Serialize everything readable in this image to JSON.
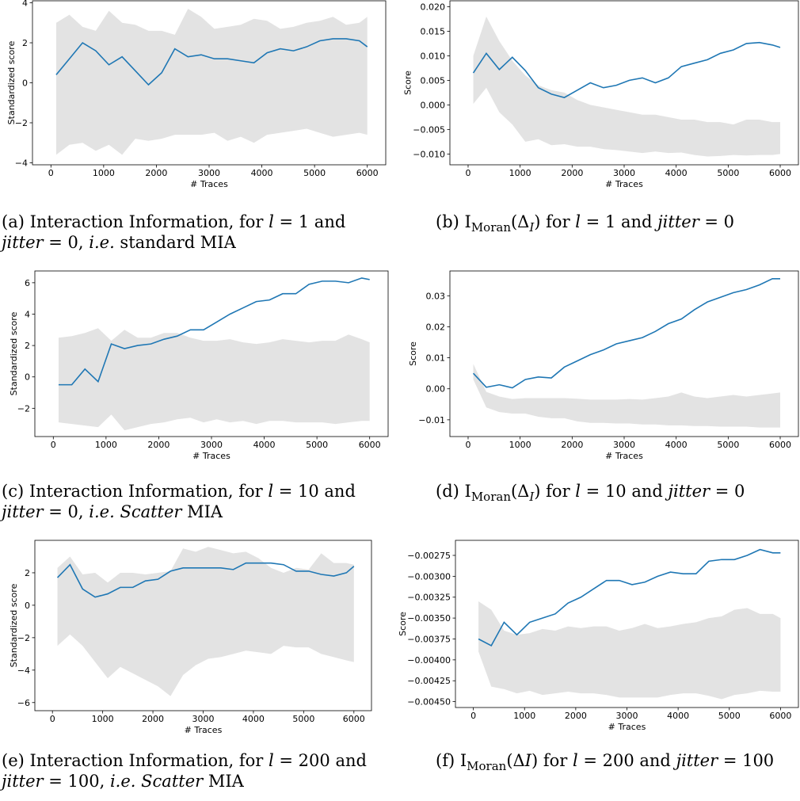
{
  "chart_data": [
    {
      "type": "line",
      "xlabel": "# Traces",
      "ylabel": "Standardized score",
      "x": [
        100,
        350,
        600,
        850,
        1100,
        1350,
        1600,
        1850,
        2100,
        2350,
        2600,
        2850,
        3100,
        3350,
        3600,
        3850,
        4100,
        4350,
        4600,
        4850,
        5100,
        5350,
        5600,
        5850,
        6000
      ],
      "series": [
        {
          "color": "#1f77b4",
          "values": [
            0.4,
            1.2,
            2.0,
            1.6,
            0.9,
            1.3,
            0.6,
            -0.1,
            0.5,
            1.7,
            1.3,
            1.4,
            1.2,
            1.2,
            1.1,
            1.0,
            1.5,
            1.7,
            1.6,
            1.8,
            2.1,
            2.2,
            2.2,
            2.1,
            1.8
          ]
        }
      ],
      "band": {
        "color": "#e3e3e3",
        "upper": [
          3.0,
          3.4,
          2.8,
          2.6,
          3.6,
          3.0,
          2.9,
          2.6,
          2.6,
          2.4,
          3.7,
          3.3,
          2.7,
          2.8,
          2.9,
          3.2,
          3.1,
          2.7,
          2.8,
          3.0,
          3.1,
          3.3,
          2.9,
          3.0,
          3.3
        ],
        "lower": [
          -3.6,
          -3.1,
          -3.0,
          -3.4,
          -3.1,
          -3.6,
          -2.8,
          -2.9,
          -2.8,
          -2.6,
          -2.6,
          -2.6,
          -2.5,
          -2.9,
          -2.7,
          -3.0,
          -2.6,
          -2.5,
          -2.4,
          -2.3,
          -2.5,
          -2.7,
          -2.6,
          -2.5,
          -2.6
        ]
      },
      "xlim": [
        -350,
        6350
      ],
      "xticks": [
        0,
        1000,
        2000,
        3000,
        4000,
        5000,
        6000
      ],
      "ylim": [
        -4.1,
        4.1
      ],
      "yticks": [
        {
          "value": -4,
          "label": "−4"
        },
        {
          "value": -2,
          "label": "−2"
        },
        0,
        2,
        4
      ],
      "caption": [
        [
          {
            "text": "(a) Interaction Information, for "
          },
          {
            "text": "l",
            "style": "italic"
          },
          {
            "text": " = 1 and"
          }
        ],
        [
          {
            "text": "jitter",
            "style": "italic"
          },
          {
            "text": " = 0, "
          },
          {
            "text": "i.e.",
            "style": "italic"
          },
          {
            "text": " standard MIA"
          }
        ]
      ]
    },
    {
      "type": "line",
      "xlabel": "# Traces",
      "ylabel": "Score",
      "x": [
        100,
        350,
        600,
        850,
        1100,
        1350,
        1600,
        1850,
        2100,
        2350,
        2600,
        2850,
        3100,
        3350,
        3600,
        3850,
        4100,
        4350,
        4600,
        4850,
        5100,
        5350,
        5600,
        5850,
        6000
      ],
      "series": [
        {
          "color": "#1f77b4",
          "values": [
            0.0065,
            0.0105,
            0.0072,
            0.0097,
            0.007,
            0.0035,
            0.0022,
            0.0015,
            0.003,
            0.0045,
            0.0035,
            0.004,
            0.005,
            0.0055,
            0.0045,
            0.0055,
            0.0078,
            0.0085,
            0.0092,
            0.0105,
            0.0112,
            0.0125,
            0.0127,
            0.0122,
            0.0117
          ]
        }
      ],
      "band": {
        "color": "#e3e3e3",
        "upper": [
          0.01,
          0.018,
          0.013,
          0.009,
          0.006,
          0.004,
          0.003,
          0.0025,
          0.001,
          0.0,
          -0.0005,
          -0.001,
          -0.0015,
          -0.002,
          -0.002,
          -0.0025,
          -0.003,
          -0.003,
          -0.0035,
          -0.0035,
          -0.004,
          -0.003,
          -0.003,
          -0.0035,
          -0.0035
        ],
        "lower": [
          0.0002,
          0.0035,
          -0.0015,
          -0.004,
          -0.0075,
          -0.007,
          -0.0082,
          -0.008,
          -0.0085,
          -0.0085,
          -0.009,
          -0.0092,
          -0.0095,
          -0.0098,
          -0.0095,
          -0.0098,
          -0.0097,
          -0.0102,
          -0.0105,
          -0.0104,
          -0.0102,
          -0.0103,
          -0.0102,
          -0.0102,
          -0.01
        ]
      },
      "xlim": [
        -350,
        6350
      ],
      "xticks": [
        0,
        1000,
        2000,
        3000,
        4000,
        5000,
        6000
      ],
      "ylim": [
        -0.0122,
        0.0212
      ],
      "yticks": [
        {
          "value": -0.01,
          "label": "−0.010"
        },
        {
          "value": -0.005,
          "label": "−0.005"
        },
        {
          "value": 0,
          "label": "0.000"
        },
        {
          "value": 0.005,
          "label": "0.005"
        },
        {
          "value": 0.01,
          "label": "0.010"
        },
        {
          "value": 0.015,
          "label": "0.015"
        },
        {
          "value": 0.02,
          "label": "0.020"
        }
      ],
      "caption": [
        [
          {
            "text": "(b) I"
          },
          {
            "text": "Moran",
            "style": "sub"
          },
          {
            "text": "(Δ"
          },
          {
            "text": "I",
            "style": "sub-italic"
          },
          {
            "text": ") for "
          },
          {
            "text": "l",
            "style": "italic"
          },
          {
            "text": " = 1 and "
          },
          {
            "text": "jitter",
            "style": "italic"
          },
          {
            "text": " = 0"
          }
        ]
      ]
    },
    {
      "type": "line",
      "xlabel": "# Traces",
      "ylabel": "Standardized score",
      "x": [
        100,
        350,
        600,
        850,
        1100,
        1350,
        1600,
        1850,
        2100,
        2350,
        2600,
        2850,
        3100,
        3350,
        3600,
        3850,
        4100,
        4350,
        4600,
        4850,
        5100,
        5350,
        5600,
        5850,
        6000
      ],
      "series": [
        {
          "color": "#1f77b4",
          "values": [
            -0.5,
            -0.5,
            0.5,
            -0.3,
            2.1,
            1.8,
            2.0,
            2.1,
            2.4,
            2.6,
            3.0,
            3.0,
            3.5,
            4.0,
            4.4,
            4.8,
            4.9,
            5.3,
            5.3,
            5.9,
            6.1,
            6.1,
            6.0,
            6.3,
            6.2
          ]
        }
      ],
      "band": {
        "color": "#e3e3e3",
        "upper": [
          2.5,
          2.6,
          2.8,
          3.1,
          2.3,
          3.0,
          2.5,
          2.5,
          2.8,
          2.8,
          2.5,
          2.3,
          2.3,
          2.4,
          2.2,
          2.1,
          2.2,
          2.4,
          2.3,
          2.2,
          2.3,
          2.3,
          2.7,
          2.4,
          2.2
        ],
        "lower": [
          -2.9,
          -3.0,
          -3.1,
          -3.2,
          -2.4,
          -3.4,
          -3.2,
          -3.0,
          -2.9,
          -2.7,
          -2.6,
          -2.9,
          -2.7,
          -2.9,
          -2.8,
          -3.0,
          -2.8,
          -2.8,
          -2.9,
          -2.9,
          -2.9,
          -3.0,
          -2.9,
          -2.8,
          -2.8
        ]
      },
      "xlim": [
        -350,
        6350
      ],
      "xticks": [
        0,
        1000,
        2000,
        3000,
        4000,
        5000,
        6000
      ],
      "ylim": [
        -3.8,
        6.75
      ],
      "yticks": [
        {
          "value": -2,
          "label": "−2"
        },
        0,
        2,
        4,
        6
      ],
      "caption": [
        [
          {
            "text": "(c) Interaction Information, for "
          },
          {
            "text": "l",
            "style": "italic"
          },
          {
            "text": " = 10 and"
          }
        ],
        [
          {
            "text": "jitter",
            "style": "italic"
          },
          {
            "text": " = 0, "
          },
          {
            "text": "i.e.",
            "style": "italic"
          },
          {
            "text": " "
          },
          {
            "text": "Scatter",
            "style": "italic"
          },
          {
            "text": " MIA"
          }
        ]
      ]
    },
    {
      "type": "line",
      "xlabel": "# Traces",
      "ylabel": "Score",
      "x": [
        100,
        350,
        600,
        850,
        1100,
        1350,
        1600,
        1850,
        2100,
        2350,
        2600,
        2850,
        3100,
        3350,
        3600,
        3850,
        4100,
        4350,
        4600,
        4850,
        5100,
        5350,
        5600,
        5850,
        6000
      ],
      "series": [
        {
          "color": "#1f77b4",
          "values": [
            0.005,
            0.0005,
            0.0013,
            0.0003,
            0.003,
            0.0038,
            0.0035,
            0.007,
            0.009,
            0.011,
            0.0125,
            0.0145,
            0.0155,
            0.0165,
            0.0185,
            0.021,
            0.0225,
            0.0255,
            0.028,
            0.0295,
            0.031,
            0.032,
            0.0335,
            0.0355,
            0.0355
          ]
        }
      ],
      "band": {
        "color": "#e3e3e3",
        "upper": [
          0.008,
          -0.001,
          -0.0025,
          -0.0033,
          -0.003,
          -0.003,
          -0.003,
          -0.003,
          -0.0032,
          -0.0035,
          -0.0035,
          -0.0035,
          -0.0033,
          -0.0035,
          -0.003,
          -0.0025,
          -0.0012,
          -0.0025,
          -0.003,
          -0.0025,
          -0.002,
          -0.0025,
          -0.002,
          -0.0015,
          -0.0012
        ],
        "lower": [
          0.003,
          -0.006,
          -0.0075,
          -0.008,
          -0.008,
          -0.009,
          -0.0095,
          -0.0095,
          -0.0105,
          -0.011,
          -0.011,
          -0.0112,
          -0.0112,
          -0.0115,
          -0.0115,
          -0.0118,
          -0.0118,
          -0.012,
          -0.012,
          -0.0122,
          -0.0122,
          -0.0122,
          -0.0125,
          -0.0125,
          -0.0125
        ]
      },
      "xlim": [
        -350,
        6350
      ],
      "xticks": [
        0,
        1000,
        2000,
        3000,
        4000,
        5000,
        6000
      ],
      "ylim": [
        -0.0154,
        0.038
      ],
      "yticks": [
        {
          "value": -0.01,
          "label": "−0.01"
        },
        {
          "value": 0,
          "label": "0.00"
        },
        {
          "value": 0.01,
          "label": "0.01"
        },
        {
          "value": 0.02,
          "label": "0.02"
        },
        {
          "value": 0.03,
          "label": "0.03"
        }
      ],
      "caption": [
        [
          {
            "text": "(d) I"
          },
          {
            "text": "Moran",
            "style": "sub"
          },
          {
            "text": "(Δ"
          },
          {
            "text": "I",
            "style": "sub-italic"
          },
          {
            "text": ") for "
          },
          {
            "text": "l",
            "style": "italic"
          },
          {
            "text": " = 10 and "
          },
          {
            "text": "jitter",
            "style": "italic"
          },
          {
            "text": " = 0"
          }
        ]
      ]
    },
    {
      "type": "line",
      "xlabel": "# Traces",
      "ylabel": "Standardized score",
      "x": [
        100,
        350,
        600,
        850,
        1100,
        1350,
        1600,
        1850,
        2100,
        2350,
        2600,
        2850,
        3100,
        3350,
        3600,
        3850,
        4100,
        4350,
        4600,
        4850,
        5100,
        5350,
        5600,
        5850,
        6000
      ],
      "series": [
        {
          "color": "#1f77b4",
          "values": [
            1.7,
            2.5,
            1.0,
            0.5,
            0.7,
            1.1,
            1.1,
            1.5,
            1.6,
            2.1,
            2.3,
            2.3,
            2.3,
            2.3,
            2.2,
            2.6,
            2.6,
            2.6,
            2.5,
            2.1,
            2.1,
            1.9,
            1.8,
            2.0,
            2.4
          ]
        }
      ],
      "band": {
        "color": "#e3e3e3",
        "upper": [
          2.3,
          3.0,
          1.9,
          2.0,
          1.4,
          2.0,
          2.0,
          1.9,
          2.0,
          2.1,
          3.5,
          3.3,
          3.6,
          3.4,
          3.2,
          3.3,
          2.9,
          2.3,
          2.0,
          2.3,
          2.2,
          3.2,
          2.6,
          2.6,
          2.5
        ],
        "lower": [
          -2.5,
          -1.8,
          -2.5,
          -3.5,
          -4.5,
          -3.8,
          -4.2,
          -4.6,
          -5.0,
          -5.6,
          -4.3,
          -3.7,
          -3.3,
          -3.2,
          -3.0,
          -2.8,
          -2.9,
          -3.0,
          -2.5,
          -2.6,
          -2.6,
          -3.0,
          -3.2,
          -3.4,
          -3.5
        ]
      },
      "xlim": [
        -350,
        6350
      ],
      "xticks": [
        0,
        1000,
        2000,
        3000,
        4000,
        5000,
        6000
      ],
      "ylim": [
        -6.5,
        4.0
      ],
      "yticks": [
        {
          "value": -6,
          "label": "−6"
        },
        {
          "value": -4,
          "label": "−4"
        },
        {
          "value": -2,
          "label": "−2"
        },
        0,
        2
      ],
      "caption": [
        [
          {
            "text": "(e) Interaction Information, for "
          },
          {
            "text": "l",
            "style": "italic"
          },
          {
            "text": " = 200 and"
          }
        ],
        [
          {
            "text": "jitter",
            "style": "italic"
          },
          {
            "text": " = 100, "
          },
          {
            "text": "i.e.",
            "style": "italic"
          },
          {
            "text": " "
          },
          {
            "text": "Scatter",
            "style": "italic"
          },
          {
            "text": " MIA"
          }
        ]
      ]
    },
    {
      "type": "line",
      "xlabel": "# Traces",
      "ylabel": "Score",
      "x": [
        100,
        350,
        600,
        850,
        1100,
        1350,
        1600,
        1850,
        2100,
        2350,
        2600,
        2850,
        3100,
        3350,
        3600,
        3850,
        4100,
        4350,
        4600,
        4850,
        5100,
        5350,
        5600,
        5850,
        6000
      ],
      "series": [
        {
          "color": "#1f77b4",
          "values": [
            -0.00375,
            -0.00383,
            -0.00355,
            -0.0037,
            -0.00355,
            -0.0035,
            -0.00345,
            -0.00332,
            -0.00325,
            -0.00315,
            -0.00305,
            -0.00305,
            -0.0031,
            -0.00307,
            -0.003,
            -0.00295,
            -0.00297,
            -0.00297,
            -0.00282,
            -0.0028,
            -0.0028,
            -0.00275,
            -0.00268,
            -0.00272,
            -0.00272
          ]
        }
      ],
      "band": {
        "color": "#e3e3e3",
        "upper": [
          -0.0033,
          -0.0034,
          -0.00365,
          -0.0037,
          -0.00368,
          -0.00363,
          -0.00365,
          -0.0036,
          -0.00362,
          -0.0036,
          -0.0036,
          -0.00365,
          -0.00362,
          -0.00357,
          -0.00362,
          -0.0036,
          -0.00357,
          -0.00355,
          -0.0035,
          -0.00348,
          -0.0034,
          -0.00338,
          -0.00345,
          -0.00345,
          -0.0035
        ],
        "lower": [
          -0.0039,
          -0.00432,
          -0.00435,
          -0.0044,
          -0.00437,
          -0.00442,
          -0.0044,
          -0.00438,
          -0.0044,
          -0.0044,
          -0.00442,
          -0.00445,
          -0.00445,
          -0.00445,
          -0.00445,
          -0.00442,
          -0.0044,
          -0.0044,
          -0.00443,
          -0.00447,
          -0.00442,
          -0.0044,
          -0.00437,
          -0.00438,
          -0.00438
        ]
      },
      "xlim": [
        -350,
        6350
      ],
      "xticks": [
        0,
        1000,
        2000,
        3000,
        4000,
        5000,
        6000
      ],
      "ylim": [
        -0.00457,
        -0.00257
      ],
      "yticks": [
        {
          "value": -0.0045,
          "label": "−0.00450"
        },
        {
          "value": -0.00425,
          "label": "−0.00425"
        },
        {
          "value": -0.004,
          "label": "−0.00400"
        },
        {
          "value": -0.00375,
          "label": "−0.00375"
        },
        {
          "value": -0.0035,
          "label": "−0.00350"
        },
        {
          "value": -0.00325,
          "label": "−0.00325"
        },
        {
          "value": -0.003,
          "label": "−0.00300"
        },
        {
          "value": -0.00275,
          "label": "−0.00275"
        }
      ],
      "caption": [
        [
          {
            "text": "(f) I"
          },
          {
            "text": "Moran",
            "style": "sub"
          },
          {
            "text": "(Δ"
          },
          {
            "text": "I",
            "style": "italic"
          },
          {
            "text": ") for "
          },
          {
            "text": "l",
            "style": "italic"
          },
          {
            "text": " = 200 and "
          },
          {
            "text": "jitter",
            "style": "italic"
          },
          {
            "text": " = 100"
          }
        ]
      ]
    }
  ]
}
